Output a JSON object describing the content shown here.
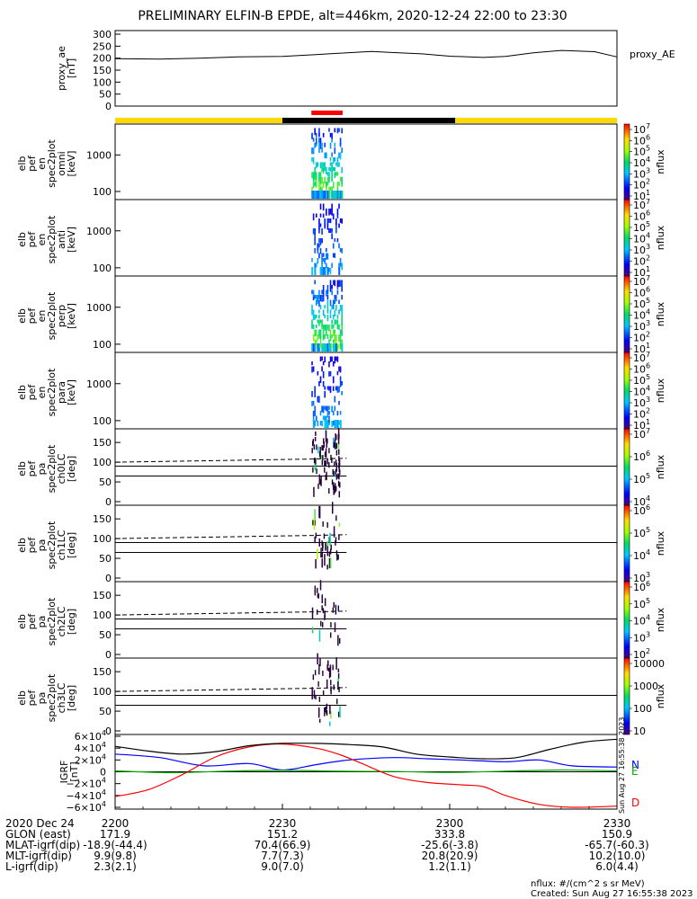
{
  "title": "PRELIMINARY ELFIN-B EPDE, alt=446km, 2020-12-24 22:00 to 23:30",
  "created": "Created: Sun Aug 27 16:55:38 2023",
  "side_stamp": "Sun Aug 27 16:55:38 2023",
  "nflux_units": "nflux: #/(cm^2 s sr MeV)",
  "colors": {
    "yellow": "#ffd800",
    "red_bar": "#ff0000",
    "black": "#000000",
    "B_N": "#0000ff",
    "B_E": "#00aa00",
    "B_D": "#ff0000"
  },
  "chart_data": [
    {
      "type": "line",
      "name": "proxy_ae",
      "ylabel_lines": [
        "proxy_ae",
        "[nT]"
      ],
      "legend": "proxy_AE",
      "ylim": [
        0,
        300
      ],
      "yticks": [
        "300",
        "250",
        "200",
        "150",
        "100",
        "50",
        "0"
      ],
      "x_min": [
        0,
        90
      ],
      "x": [
        0,
        8,
        15,
        22,
        30,
        36,
        40,
        46,
        50,
        55,
        60,
        66,
        70,
        75,
        80,
        86,
        90
      ],
      "y": [
        198,
        196,
        200,
        205,
        207,
        215,
        220,
        228,
        223,
        218,
        208,
        203,
        207,
        222,
        232,
        227,
        205
      ]
    },
    {
      "type": "bar",
      "name": "orbit-bar",
      "segments": [
        {
          "from": 0,
          "to": 30,
          "color": "yellow"
        },
        {
          "from": 30,
          "to": 61,
          "color": "black"
        },
        {
          "from": 61,
          "to": 90,
          "color": "yellow"
        }
      ],
      "science_zone": {
        "from": 35.2,
        "to": 40.8,
        "color": "red"
      }
    },
    {
      "type": "heatmap",
      "name": "spec-omni",
      "ylabel_lines": [
        "elb",
        "pef",
        "en",
        "spec2plot",
        "omni",
        "[keV]"
      ],
      "yticks": [
        "1000",
        "100"
      ],
      "ylog": [
        60,
        7000
      ],
      "colorbar": {
        "label": "nflux",
        "ticks": [
          "10",
          "10",
          "10",
          "10",
          "10",
          "10",
          "10"
        ],
        "exps": [
          "7",
          "6",
          "5",
          "4",
          "3",
          "2",
          "1"
        ],
        "clim_exp": [
          1,
          7
        ]
      },
      "zone": [
        35.2,
        40.8
      ],
      "peak": "low-energy"
    },
    {
      "type": "heatmap",
      "name": "spec-anti",
      "ylabel_lines": [
        "elb",
        "pef",
        "en",
        "spec2plot",
        "anti",
        "[keV]"
      ],
      "yticks": [
        "1000",
        "100"
      ],
      "ylog": [
        60,
        7000
      ],
      "colorbar": {
        "label": "nflux",
        "ticks": [
          "10",
          "10",
          "10",
          "10",
          "10",
          "10",
          "10"
        ],
        "exps": [
          "7",
          "6",
          "5",
          "4",
          "3",
          "2",
          "1"
        ],
        "clim_exp": [
          1,
          7
        ]
      },
      "zone": [
        35.2,
        40.8
      ],
      "peak": "weak"
    },
    {
      "type": "heatmap",
      "name": "spec-perp",
      "ylabel_lines": [
        "elb",
        "pef",
        "en",
        "spec2plot",
        "perp",
        "[keV]"
      ],
      "yticks": [
        "1000",
        "100"
      ],
      "ylog": [
        60,
        7000
      ],
      "colorbar": {
        "label": "nflux",
        "ticks": [
          "10",
          "10",
          "10",
          "10",
          "10",
          "10",
          "10"
        ],
        "exps": [
          "7",
          "6",
          "5",
          "4",
          "3",
          "2",
          "1"
        ],
        "clim_exp": [
          1,
          7
        ]
      },
      "zone": [
        35.2,
        40.8
      ],
      "peak": "low-energy"
    },
    {
      "type": "heatmap",
      "name": "spec-para",
      "ylabel_lines": [
        "elb",
        "pef",
        "en",
        "spec2plot",
        "para",
        "[keV]"
      ],
      "yticks": [
        "1000",
        "100"
      ],
      "ylog": [
        60,
        7000
      ],
      "colorbar": {
        "label": "nflux",
        "ticks": [
          "10",
          "10",
          "10",
          "10",
          "10",
          "10",
          "10"
        ],
        "exps": [
          "7",
          "6",
          "5",
          "4",
          "3",
          "2",
          "1"
        ],
        "clim_exp": [
          1,
          7
        ]
      },
      "zone": [
        35.2,
        40.8
      ],
      "peak": "weak"
    },
    {
      "type": "heatmap",
      "name": "pa-ch0",
      "ylabel_lines": [
        "elb",
        "pef",
        "pa",
        "spec2plot",
        "ch0LC",
        "[deg]"
      ],
      "yticks": [
        "150",
        "100",
        "50",
        "0"
      ],
      "ylim": [
        0,
        180
      ],
      "colorbar": {
        "label": "nflux",
        "ticks": [
          "10",
          "10",
          "10",
          "10"
        ],
        "exps": [
          "7",
          "6",
          "5",
          "4"
        ]
      },
      "zone": [
        35.2,
        41.5
      ],
      "losscone": [
        65,
        90
      ],
      "density": "dense"
    },
    {
      "type": "heatmap",
      "name": "pa-ch1",
      "ylabel_lines": [
        "elb",
        "pef",
        "pa",
        "spec2plot",
        "ch1LC",
        "[deg]"
      ],
      "yticks": [
        "150",
        "100",
        "50",
        "0"
      ],
      "ylim": [
        0,
        180
      ],
      "colorbar": {
        "label": "nflux",
        "ticks": [
          "10",
          "10",
          "10",
          "10"
        ],
        "exps": [
          "6",
          "5",
          "4",
          "3"
        ]
      },
      "zone": [
        35.2,
        41.5
      ],
      "losscone": [
        65,
        90
      ],
      "density": "medium"
    },
    {
      "type": "heatmap",
      "name": "pa-ch2",
      "ylabel_lines": [
        "elb",
        "pef",
        "pa",
        "spec2plot",
        "ch2LC",
        "[deg]"
      ],
      "yticks": [
        "150",
        "100",
        "50",
        "0"
      ],
      "ylim": [
        0,
        180
      ],
      "colorbar": {
        "label": "nflux",
        "ticks": [
          "10",
          "10",
          "10",
          "10",
          "10"
        ],
        "exps": [
          "6",
          "5",
          "4",
          "3",
          "2"
        ]
      },
      "zone": [
        35.2,
        41.5
      ],
      "losscone": [
        65,
        90
      ],
      "density": "sparse"
    },
    {
      "type": "heatmap",
      "name": "pa-ch3",
      "ylabel_lines": [
        "elb",
        "pef",
        "pa",
        "spec2plot",
        "ch3LC",
        "[deg]"
      ],
      "yticks": [
        "150",
        "100",
        "50",
        "0"
      ],
      "ylim": [
        0,
        180
      ],
      "colorbar": {
        "label": "nflux",
        "ticks": [
          "10000",
          "1000",
          "100",
          "10"
        ]
      },
      "zone": [
        35.2,
        41.5
      ],
      "losscone": [
        65,
        90
      ],
      "density": "medium"
    },
    {
      "type": "line",
      "name": "igrf",
      "ylabel_lines": [
        "IGRF",
        "[nT]"
      ],
      "ylim": [
        -60000,
        60000
      ],
      "yticks": [
        "6×10",
        "4×10",
        "2×10",
        "0",
        "−2×10",
        "−4×10",
        "−6×10"
      ],
      "ytick_exp": "4",
      "series": [
        {
          "name": "N",
          "color": "B_N",
          "x": [
            0,
            8,
            16,
            24,
            30,
            36,
            42,
            50,
            56,
            62,
            70,
            76,
            82,
            90
          ],
          "y": [
            30000,
            24000,
            10000,
            14000,
            3000,
            12000,
            20000,
            24000,
            22000,
            20000,
            17000,
            20000,
            10000,
            8000
          ]
        },
        {
          "name": "E",
          "color": "B_E",
          "x": [
            0,
            10,
            20,
            30,
            40,
            50,
            60,
            70,
            80,
            90
          ],
          "y": [
            1500,
            -1500,
            1000,
            2500,
            1000,
            500,
            -1000,
            1000,
            3000,
            1500
          ]
        },
        {
          "name": "D",
          "color": "B_D",
          "x": [
            0,
            6,
            12,
            18,
            24,
            30,
            36,
            40,
            44,
            50,
            56,
            62,
            66,
            70,
            76,
            82,
            90
          ],
          "y": [
            -42000,
            -30000,
            -5000,
            25000,
            42000,
            47000,
            40000,
            30000,
            15000,
            -8000,
            -18000,
            -22000,
            -25000,
            -40000,
            -55000,
            -60000,
            -58000
          ]
        },
        {
          "name": "total",
          "color": "black",
          "x": [
            0,
            6,
            12,
            18,
            24,
            30,
            36,
            42,
            48,
            54,
            60,
            66,
            72,
            78,
            84,
            90
          ],
          "y": [
            43000,
            35000,
            30000,
            34000,
            44000,
            48000,
            48000,
            46000,
            42000,
            30000,
            25000,
            22000,
            24000,
            38000,
            50000,
            55000
          ]
        }
      ]
    }
  ],
  "time_axis": {
    "row_labels": [
      "2020 Dec 24",
      "GLON (east)",
      "MLAT-igrf(dip)",
      "MLT-igrf(dip)",
      "L-igrf(dip)"
    ],
    "columns": [
      {
        "min": 0,
        "values": [
          "2200",
          "171.9",
          "-18.9(-44.4)",
          "9.9(9.8)",
          "2.3(2.1)"
        ]
      },
      {
        "min": 30,
        "values": [
          "2230",
          "151.2",
          "70.4(66.9)",
          "7.7(7.3)",
          "9.0(7.0)"
        ]
      },
      {
        "min": 60,
        "values": [
          "2300",
          "333.8",
          "-25.6(-3.8)",
          "20.8(20.9)",
          "1.2(1.1)"
        ]
      },
      {
        "min": 90,
        "values": [
          "2330",
          "150.9",
          "-65.7(-60.3)",
          "10.2(10.0)",
          "6.0(4.4)"
        ]
      }
    ]
  }
}
